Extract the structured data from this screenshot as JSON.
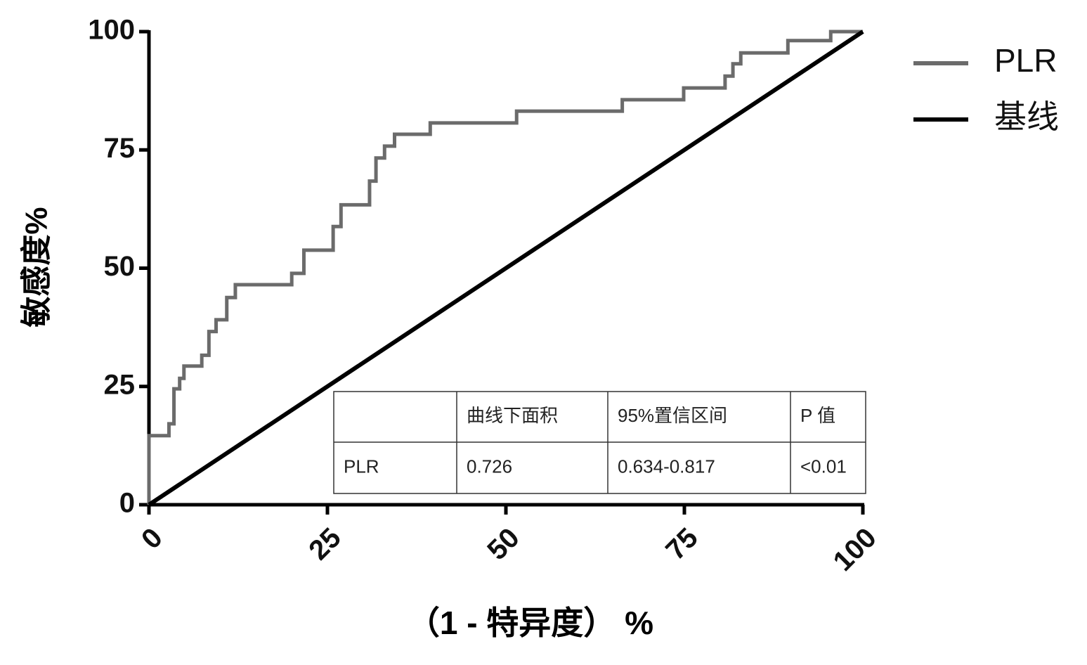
{
  "chart_data": {
    "type": "line",
    "xlabel": "（1 - 特异度） %",
    "ylabel": "敏感度%",
    "xlim": [
      0,
      100
    ],
    "ylim": [
      0,
      100
    ],
    "xticks": [
      0,
      25,
      50,
      75,
      100
    ],
    "yticks": [
      0,
      25,
      50,
      75,
      100
    ],
    "legend": "right",
    "series": [
      {
        "name": "PLR",
        "color": "#6b6b6b",
        "x": [
          0,
          0,
          2.8,
          2.8,
          3.5,
          3.5,
          4.3,
          4.3,
          4.9,
          4.9,
          7.4,
          7.4,
          8.4,
          8.4,
          9.4,
          9.4,
          10.9,
          10.9,
          12.1,
          12.1,
          20,
          20,
          21.7,
          21.7,
          25.8,
          25.8,
          26.9,
          26.9,
          30.9,
          30.9,
          31.8,
          31.8,
          33,
          33,
          34.4,
          34.4,
          39.4,
          39.4,
          51.5,
          51.5,
          66.3,
          66.3,
          74.9,
          74.9,
          80.7,
          80.7,
          81.8,
          81.8,
          82.9,
          82.9,
          89.5,
          89.5,
          95.5,
          95.5,
          100
        ],
        "values": [
          0,
          14.6,
          14.6,
          17.1,
          17.1,
          24.5,
          24.5,
          26.7,
          26.7,
          29.3,
          29.3,
          31.6,
          31.6,
          36.6,
          36.6,
          39.1,
          39.1,
          43.8,
          43.8,
          46.5,
          46.5,
          48.9,
          48.9,
          53.8,
          53.8,
          58.8,
          58.8,
          63.4,
          63.4,
          68.4,
          68.4,
          73.3,
          73.3,
          75.8,
          75.8,
          78.3,
          78.3,
          80.7,
          80.7,
          83.2,
          83.2,
          85.6,
          85.6,
          88.1,
          88.1,
          90.6,
          90.6,
          93.2,
          93.2,
          95.5,
          95.5,
          98.1,
          98.1,
          100,
          100
        ]
      },
      {
        "name": "基线",
        "color": "#000000",
        "x": [
          0,
          100
        ],
        "values": [
          0,
          100
        ]
      }
    ]
  },
  "table": {
    "header": [
      null,
      "曲线下面积",
      "95%置信区间",
      "P  值"
    ],
    "rows": [
      [
        "PLR",
        "0.726",
        "0.634-0.817",
        "<0.01"
      ]
    ]
  }
}
